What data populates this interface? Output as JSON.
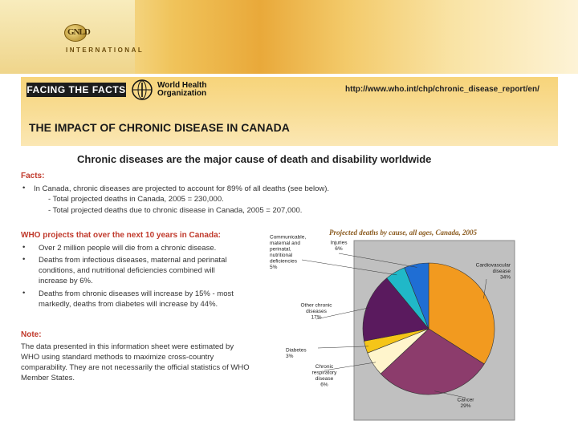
{
  "header": {
    "logo_letters": "GNLD",
    "logo_text": "INTERNATIONAL"
  },
  "banner": {
    "badge": "FACING THE FACTS",
    "who_name_line1": "World Health",
    "who_name_line2": "Organization",
    "url": "http://www.who.int/chp/chronic_disease_report/en/",
    "title": "THE IMPACT OF CHRONIC DISEASE IN CANADA"
  },
  "subtitle": "Chronic diseases are the major cause of death and disability worldwide",
  "facts": {
    "heading": "Facts:",
    "bullet1": "In Canada, chronic diseases are projected to account for 89% of all deaths (see below).",
    "sub1": "- Total projected deaths in Canada, 2005 = 230,000.",
    "sub2": "- Total projected deaths due to chronic disease in Canada, 2005 = 207,000."
  },
  "projections": {
    "heading": "WHO projects that over the next 10 years in Canada:",
    "items": [
      [
        "Over 2 million people will die from a chronic disease."
      ],
      [
        "Deaths from infectious diseases, maternal and perinatal",
        "conditions, and nutritional deficiencies combined will",
        "increase by 6%."
      ],
      [
        "Deaths from chronic diseases will increase by 15% - most",
        "markedly, deaths from diabetes will increase by 44%."
      ]
    ]
  },
  "note": {
    "heading": "Note:",
    "lines": [
      "The data presented in this information sheet were estimated by",
      "WHO using standard methods to maximize cross-country",
      "comparability.  They are not necessarily the official statistics of WHO",
      "Member States."
    ]
  },
  "colors": {
    "cardio": "#f29a1f",
    "cancer": "#8c3c6c",
    "respiratory": "#fff5cc",
    "diabetes": "#f5c518",
    "other_chronic": "#5a1a5e",
    "communicable": "#20b8c8",
    "injuries": "#1f6ed4",
    "plot_bg": "#c0c0c0"
  },
  "chart_data": {
    "type": "pie",
    "title": "Projected deaths by cause, all ages, Canada, 2005",
    "slices": [
      {
        "label": "Cardiovascular disease",
        "value": 34,
        "value_label": "34%",
        "color": "#f29a1f"
      },
      {
        "label": "Cancer",
        "value": 29,
        "value_label": "29%",
        "color": "#8c3c6c"
      },
      {
        "label": "Chronic respiratory disease",
        "value": 6,
        "value_label": "6%",
        "color": "#fff5cc"
      },
      {
        "label": "Diabetes",
        "value": 3,
        "value_label": "3%",
        "color": "#f5c518"
      },
      {
        "label": "Other chronic diseases",
        "value": 17,
        "value_label": "17%",
        "color": "#5a1a5e"
      },
      {
        "label": "Communicable, maternal and perinatal, nutritional deficiencies",
        "value": 5,
        "value_label": "5%",
        "color": "#20b8c8"
      },
      {
        "label": "Injuries",
        "value": 6,
        "value_label": "6%",
        "color": "#1f6ed4"
      }
    ],
    "label_lines": {
      "Cardiovascular disease": [
        "Cardiovascular",
        "disease"
      ],
      "Cancer": [
        "Cancer"
      ],
      "Chronic respiratory disease": [
        "Chronic",
        "respiratory",
        "disease"
      ],
      "Diabetes": [
        "Diabetes"
      ],
      "Other chronic diseases": [
        "Other chronic",
        "diseases"
      ],
      "Communicable, maternal and perinatal, nutritional deficiencies": [
        "Communicable,",
        "maternal and",
        "perinatal,",
        "nutritional",
        "deficiencies"
      ],
      "Injuries": [
        "Injuries"
      ]
    }
  }
}
